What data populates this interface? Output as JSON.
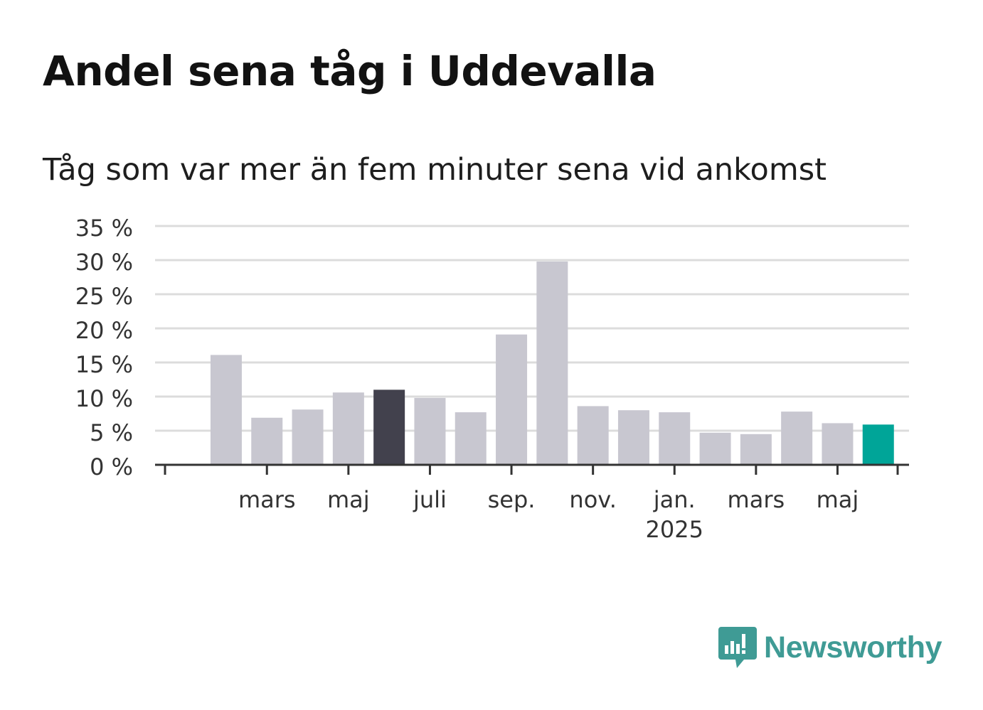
{
  "title": "Andel sena tåg i Uddevalla",
  "subtitle": "Tåg som var mer än fem minuter sena vid ankomst",
  "brand": {
    "name": "Newsworthy",
    "icon": "newsworthy-logo-icon",
    "color": "#3f9b95"
  },
  "colors": {
    "bar_default": "#c8c7d0",
    "bar_highlight": "#42414d",
    "bar_latest": "#00a598",
    "grid": "#dcdcdc",
    "axis": "#333333"
  },
  "chart_data": {
    "type": "bar",
    "title": "Andel sena tåg i Uddevalla",
    "subtitle": "Tåg som var mer än fem minuter sena vid ankomst",
    "xlabel": "",
    "ylabel": "",
    "ylim": [
      0,
      35
    ],
    "y_ticks": [
      0,
      5,
      10,
      15,
      20,
      25,
      30,
      35
    ],
    "y_tick_labels": [
      "0 %",
      "5 %",
      "10 %",
      "15 %",
      "20 %",
      "25 %",
      "30 %",
      "35 %"
    ],
    "grid": true,
    "x_tick_labels": [
      {
        "label": "mars",
        "sub": ""
      },
      {
        "label": "maj",
        "sub": ""
      },
      {
        "label": "juli",
        "sub": ""
      },
      {
        "label": "sep.",
        "sub": ""
      },
      {
        "label": "nov.",
        "sub": ""
      },
      {
        "label": "jan.",
        "sub": "2025"
      },
      {
        "label": "mars",
        "sub": ""
      },
      {
        "label": "maj",
        "sub": ""
      }
    ],
    "categories": [
      "2024-02",
      "2024-03",
      "2024-04",
      "2024-05",
      "2024-06",
      "2024-07",
      "2024-08",
      "2024-09",
      "2024-10",
      "2024-11",
      "2024-12",
      "2025-01",
      "2025-02",
      "2025-03",
      "2025-04",
      "2025-05",
      "2025-06"
    ],
    "values": [
      16.1,
      6.9,
      8.1,
      10.6,
      11.0,
      9.8,
      7.7,
      19.1,
      29.8,
      8.6,
      8.0,
      7.7,
      4.7,
      4.5,
      7.8,
      6.1,
      5.9
    ],
    "highlight": [
      {
        "category": "2024-06",
        "role": "highlight"
      },
      {
        "category": "2025-06",
        "role": "latest"
      }
    ]
  }
}
